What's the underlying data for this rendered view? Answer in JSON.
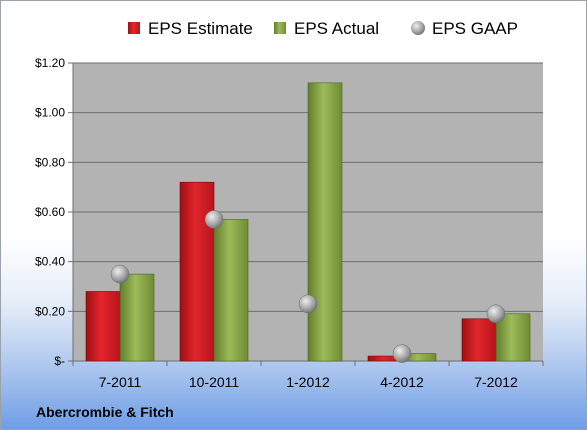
{
  "chart_data": {
    "type": "bar",
    "title": "",
    "categories": [
      "7-2011",
      "10-2011",
      "1-2012",
      "4-2012",
      "7-2012"
    ],
    "series": [
      {
        "name": "EPS Estimate",
        "kind": "bar",
        "values": [
          0.28,
          0.72,
          null,
          0.02,
          0.17
        ],
        "color": "#d81e24"
      },
      {
        "name": "EPS Actual",
        "kind": "bar",
        "values": [
          0.35,
          0.57,
          1.12,
          0.03,
          0.19
        ],
        "color": "#8aa84a"
      },
      {
        "name": "EPS GAAP",
        "kind": "point",
        "values": [
          0.35,
          0.57,
          0.23,
          0.03,
          0.19
        ],
        "color": "#9a9a9a"
      }
    ],
    "ylim": [
      0,
      1.2
    ],
    "yticks": [
      {
        "value": 0,
        "label": "$-"
      },
      {
        "value": 0.2,
        "label": "$0.20"
      },
      {
        "value": 0.4,
        "label": "$0.40"
      },
      {
        "value": 0.6,
        "label": "$0.60"
      },
      {
        "value": 0.8,
        "label": "$0.80"
      },
      {
        "value": 1.0,
        "label": "$1.00"
      },
      {
        "value": 1.2,
        "label": "$1.20"
      }
    ],
    "grid": true,
    "legend_position": "top",
    "plot_background": "#b3b3b3"
  },
  "company": "Abercrombie & Fitch"
}
